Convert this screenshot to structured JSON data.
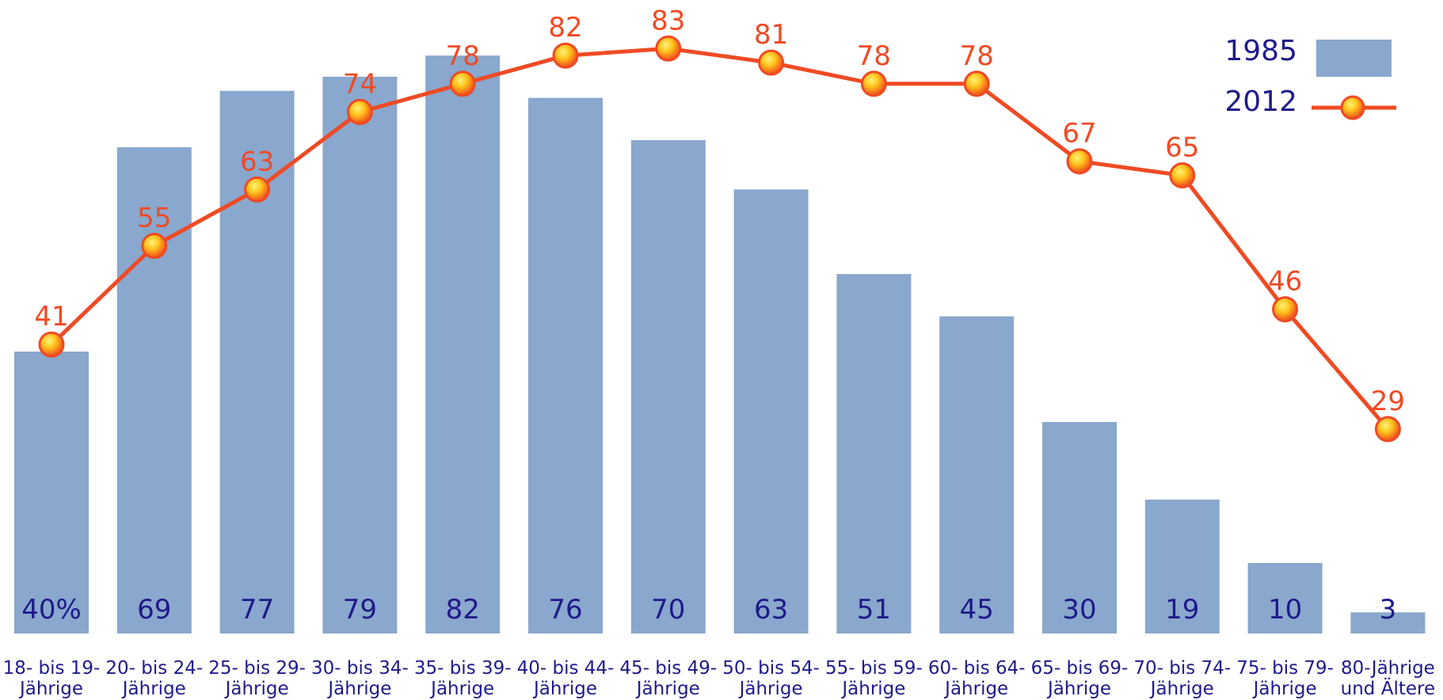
{
  "chart_data": {
    "type": "bar",
    "categories": [
      [
        "18- bis 19-",
        "Jährige"
      ],
      [
        "20- bis 24-",
        "Jährige"
      ],
      [
        "25- bis 29-",
        "Jährige"
      ],
      [
        "30- bis 34-",
        "Jährige"
      ],
      [
        "35- bis 39-",
        "Jährige"
      ],
      [
        "40- bis 44-",
        "Jährige"
      ],
      [
        "45- bis 49-",
        "Jährige"
      ],
      [
        "50- bis 54-",
        "Jährige"
      ],
      [
        "55- bis 59-",
        "Jährige"
      ],
      [
        "60- bis 64-",
        "Jährige"
      ],
      [
        "65- bis 69-",
        "Jährige"
      ],
      [
        "70- bis 74-",
        "Jährige"
      ],
      [
        "75- bis 79-",
        "Jährige"
      ],
      [
        "80-Jährige",
        "und Ältere"
      ]
    ],
    "series": [
      {
        "name": "1985",
        "type": "bar",
        "values": [
          40,
          69,
          77,
          79,
          82,
          76,
          70,
          63,
          51,
          45,
          30,
          19,
          10,
          3
        ],
        "labels": [
          "40%",
          "69",
          "77",
          "79",
          "82",
          "76",
          "70",
          "63",
          "51",
          "45",
          "30",
          "19",
          "10",
          "3"
        ],
        "color": "#8aa7cd"
      },
      {
        "name": "2012",
        "type": "line",
        "values": [
          41,
          55,
          63,
          74,
          78,
          82,
          83,
          81,
          78,
          78,
          67,
          65,
          46,
          29
        ],
        "labels": [
          "41",
          "55",
          "63",
          "74",
          "78",
          "82",
          "83",
          "81",
          "78",
          "78",
          "67",
          "65",
          "46",
          "29"
        ],
        "color": "#ef4a24"
      }
    ],
    "ylim": [
      0,
      90
    ],
    "grid": false,
    "legend": "top-right",
    "colors": {
      "bar": "#8aa7cd",
      "line": "#ef4a24",
      "bar_label": "#1f1a8a",
      "tick_label": "#1f1a8a",
      "marker_fill": "#ffd21a",
      "marker_edge": "#ef4a24"
    }
  }
}
